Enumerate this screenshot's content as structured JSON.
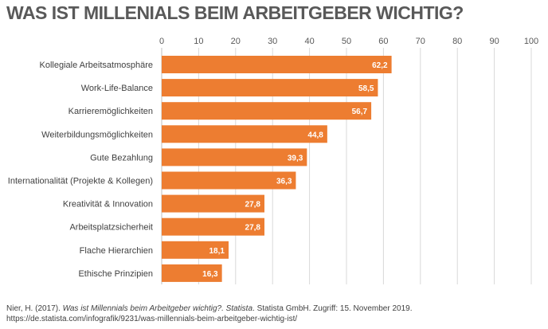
{
  "title": "WAS IST MILLENIALS BEIM ARBEITGEBER WICHTIG?",
  "source": {
    "prefix": "Nier, H. (2017). ",
    "title": "Was ist Millennials beim Arbeitgeber wichtig?. Statista",
    "suffix": ". Statista GmbH. Zugriff: 15. November 2019.",
    "url": "https://de.statista.com/infografik/9231/was-millennials-beim-arbeitgeber-wichtig-ist/"
  },
  "colors": {
    "bar": "#ed7d31",
    "title": "#595959"
  },
  "chart_data": {
    "type": "bar",
    "orientation": "horizontal",
    "title": "WAS IST MILLENIALS BEIM ARBEITGEBER WICHTIG?",
    "categories": [
      "Kollegiale Arbeitsatmosphäre",
      "Work-Life-Balance",
      "Karrieremöglichkeiten",
      "Weiterbildungsmöglichkeiten",
      "Gute Bezahlung",
      "Internationalität (Projekte & Kollegen)",
      "Kreativität & Innovation",
      "Arbeitsplatzsicherheit",
      "Flache Hierarchien",
      "Ethische Prinzipien"
    ],
    "values": [
      62.2,
      58.5,
      56.7,
      44.8,
      39.3,
      36.3,
      27.8,
      27.8,
      18.1,
      16.3
    ],
    "value_labels": [
      "62,2",
      "58,5",
      "56,7",
      "44,8",
      "39,3",
      "36,3",
      "27,8",
      "27,8",
      "18,1",
      "16,3"
    ],
    "xlim": [
      0,
      100
    ],
    "xticks": [
      0,
      10,
      20,
      30,
      40,
      50,
      60,
      70,
      80,
      90,
      100
    ],
    "xaxis_position": "top",
    "grid": true,
    "legend": "none"
  }
}
